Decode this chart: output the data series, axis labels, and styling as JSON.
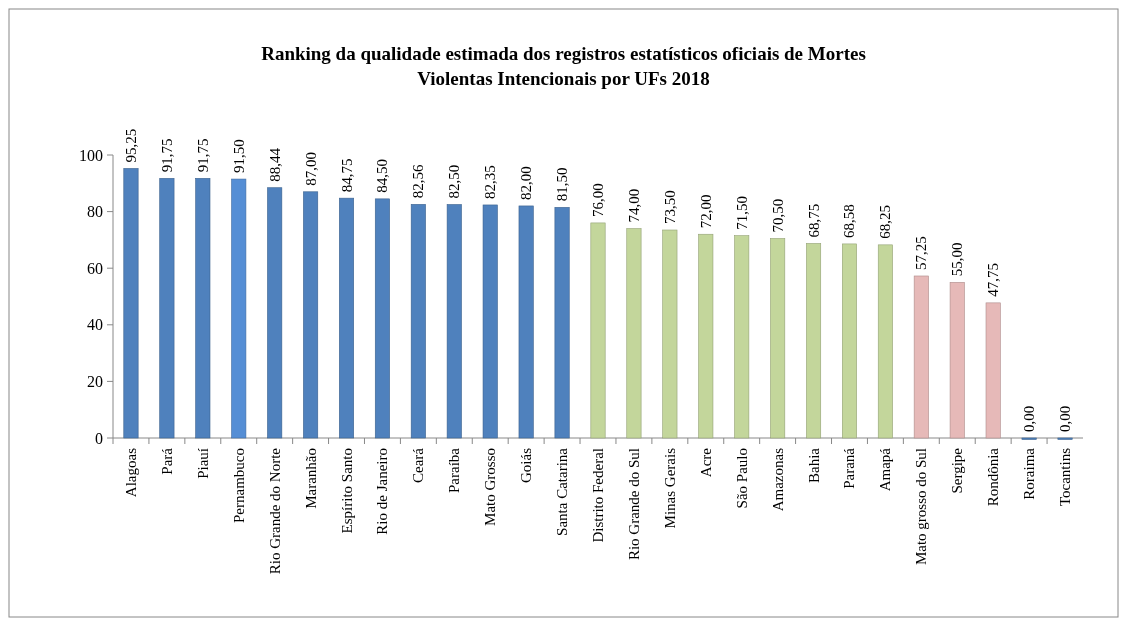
{
  "chart_data": {
    "type": "bar",
    "title": "Ranking da qualidade estimada dos registros estatísticos oficiais de Mortes Violentas Intencionais por UFs 2018",
    "categories": [
      "Alagoas",
      "Pará",
      "Piauí",
      "Pernambuco",
      "Rio Grande do Norte",
      "Maranhão",
      "Espírito Santo",
      "Rio de Janeiro",
      "Ceará",
      "Paraíba",
      "Mato Grosso",
      "Goiás",
      "Santa Catarina",
      "Distrito Federal",
      "Rio Grande do Sul",
      "Minas Gerais",
      "Acre",
      "São Paulo",
      "Amazonas",
      "Bahia",
      "Paraná",
      "Amapá",
      "Mato grosso do Sul",
      "Sergipe",
      "Rondônia",
      "Roraima",
      "Tocantins"
    ],
    "values": [
      95.25,
      91.75,
      91.75,
      91.5,
      88.44,
      87.0,
      84.75,
      84.5,
      82.56,
      82.5,
      82.35,
      82.0,
      81.5,
      76.0,
      74.0,
      73.5,
      72.0,
      71.5,
      70.5,
      68.75,
      68.58,
      68.25,
      57.25,
      55.0,
      47.75,
      0.0,
      0.0
    ],
    "value_labels": [
      "95,25",
      "91,75",
      "91,75",
      "91,50",
      "88,44",
      "87,00",
      "84,75",
      "84,50",
      "82,56",
      "82,50",
      "82,35",
      "82,00",
      "81,50",
      "76,00",
      "74,00",
      "73,50",
      "72,00",
      "71,50",
      "70,50",
      "68,75",
      "68,58",
      "68,25",
      "57,25",
      "55,00",
      "47,75",
      "0,00",
      "0,00"
    ],
    "colors": [
      "#4f81bd",
      "#4f81bd",
      "#4f81bd",
      "#558ed5",
      "#4f81bd",
      "#4f81bd",
      "#4f81bd",
      "#4f81bd",
      "#4f81bd",
      "#4f81bd",
      "#4f81bd",
      "#4f81bd",
      "#4f81bd",
      "#c3d69b",
      "#c3d69b",
      "#c3d69b",
      "#c3d69b",
      "#c3d69b",
      "#c3d69b",
      "#c3d69b",
      "#c3d69b",
      "#c3d69b",
      "#e6b9b8",
      "#e6b9b8",
      "#e6b9b8",
      "#4f81bd",
      "#4f81bd"
    ],
    "ylim": [
      0,
      100
    ],
    "yticks": [
      0,
      20,
      40,
      60,
      80,
      100
    ],
    "grid": false
  }
}
